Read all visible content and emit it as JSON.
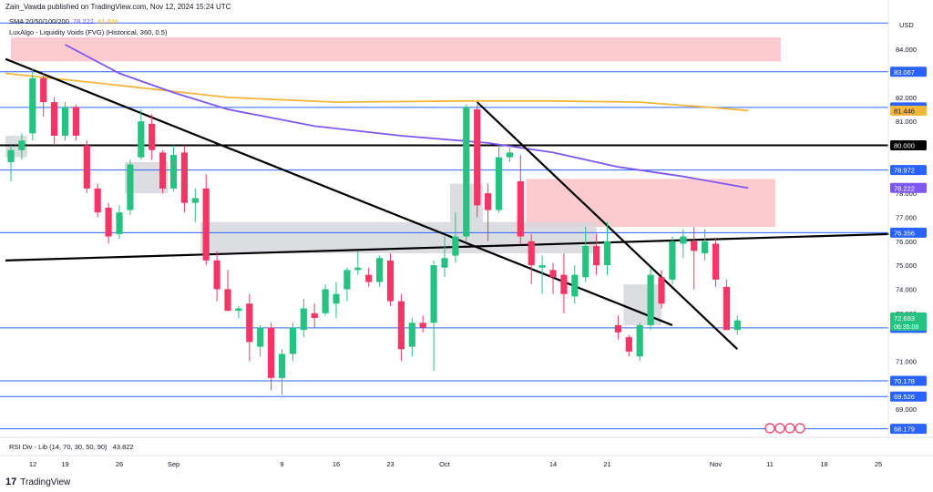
{
  "header": {
    "published": "Zain_Vawda published on TradingView.com, Nov 12, 2024 15:24 UTC"
  },
  "legend": {
    "sma_label": "SMA 20/50/100/200",
    "sma_v1": "78.222",
    "sma_v2": "81.446",
    "luxalgo_label": "LuxAlgo - Liquidity Voids (FVG) (Historical, 360, 0.5)"
  },
  "rsi": {
    "label": "RSI Div - Lib (14, 70, 30, 50, 90)",
    "value": "43.822"
  },
  "brand": {
    "name": "TradingView",
    "logo": "17"
  },
  "colors": {
    "up": "#26c281",
    "down": "#f23666",
    "hline": "#2962ff",
    "sma_purple": "#7e57f0",
    "sma_orange": "#f4b73a",
    "zone_pink": "#fcc2c8",
    "zone_grey": "#d6d7da"
  },
  "chart_data": {
    "type": "candlestick",
    "currency": "USD",
    "ylim": [
      67.9,
      85.3
    ],
    "xlim": [
      0,
      80
    ],
    "price_ticks": [
      "84.000",
      "82.000",
      "81.000",
      "78.000",
      "77.000",
      "76.000",
      "75.000",
      "74.000",
      "73.000",
      "71.000",
      "69.000"
    ],
    "price_tick_values": [
      84,
      82,
      81,
      78,
      77,
      76,
      75,
      74,
      73,
      71,
      69
    ],
    "x_ticks": [
      {
        "label": "12",
        "x": 0
      },
      {
        "label": "19",
        "x": 5
      },
      {
        "label": "26",
        "x": 10
      },
      {
        "label": "Sep",
        "x": 15
      },
      {
        "label": "9",
        "x": 25
      },
      {
        "label": "16",
        "x": 30
      },
      {
        "label": "23",
        "x": 35
      },
      {
        "label": "Oct",
        "x": 40
      },
      {
        "label": "14",
        "x": 50
      },
      {
        "label": "21",
        "x": 55
      },
      {
        "label": "Nov",
        "x": 65
      },
      {
        "label": "11",
        "x": 70
      },
      {
        "label": "18",
        "x": 75
      },
      {
        "label": "25",
        "x": 80
      }
    ],
    "horizontal_levels": [
      {
        "value": 85.1,
        "label": ""
      },
      {
        "value": 83.067,
        "label": "83.067"
      },
      {
        "value": 81.58,
        "label": "81.580"
      },
      {
        "value": 78.972,
        "label": "78.972"
      },
      {
        "value": 76.356,
        "label": "76.356"
      },
      {
        "value": 72.389,
        "label": "72.389"
      },
      {
        "value": 70.178,
        "label": "70.178"
      },
      {
        "value": 69.526,
        "label": "69.526"
      },
      {
        "value": 68.179,
        "label": "68.179"
      }
    ],
    "black_level": {
      "value": 80.0,
      "label": "80.000"
    },
    "sma_labels": [
      {
        "value": 81.446,
        "label": "81.446"
      },
      {
        "value": 78.222,
        "label": "78.222"
      }
    ],
    "last_price": {
      "value": 72.693,
      "label": "72.693",
      "countdown": "06:35:08"
    },
    "candles": [
      {
        "x": 0,
        "o": 79.3,
        "h": 80.0,
        "l": 78.5,
        "c": 79.8
      },
      {
        "x": 1,
        "o": 79.8,
        "h": 80.5,
        "l": 79.4,
        "c": 80.2
      },
      {
        "x": 2,
        "o": 80.5,
        "h": 83.2,
        "l": 80.2,
        "c": 82.8
      },
      {
        "x": 3,
        "o": 82.8,
        "h": 83.0,
        "l": 81.2,
        "c": 81.8
      },
      {
        "x": 4,
        "o": 81.8,
        "h": 82.0,
        "l": 80.0,
        "c": 80.4
      },
      {
        "x": 5,
        "o": 80.4,
        "h": 81.8,
        "l": 80.2,
        "c": 81.6
      },
      {
        "x": 6,
        "o": 81.6,
        "h": 81.7,
        "l": 80.2,
        "c": 80.4
      },
      {
        "x": 7,
        "o": 80.0,
        "h": 80.2,
        "l": 78.0,
        "c": 78.2
      },
      {
        "x": 8,
        "o": 78.2,
        "h": 78.4,
        "l": 77.0,
        "c": 77.2
      },
      {
        "x": 9,
        "o": 77.4,
        "h": 77.6,
        "l": 75.9,
        "c": 76.2
      },
      {
        "x": 10,
        "o": 76.3,
        "h": 77.5,
        "l": 76.1,
        "c": 77.2
      },
      {
        "x": 11,
        "o": 77.3,
        "h": 79.4,
        "l": 77.1,
        "c": 79.2
      },
      {
        "x": 12,
        "o": 79.5,
        "h": 81.5,
        "l": 79.4,
        "c": 81.0
      },
      {
        "x": 13,
        "o": 80.9,
        "h": 81.3,
        "l": 79.4,
        "c": 79.8
      },
      {
        "x": 14,
        "o": 79.7,
        "h": 79.8,
        "l": 78.0,
        "c": 78.2
      },
      {
        "x": 15,
        "o": 78.2,
        "h": 80.0,
        "l": 78.1,
        "c": 79.6
      },
      {
        "x": 16,
        "o": 79.7,
        "h": 80.0,
        "l": 77.2,
        "c": 77.6
      },
      {
        "x": 17,
        "o": 77.6,
        "h": 78.2,
        "l": 76.8,
        "c": 77.8
      },
      {
        "x": 18,
        "o": 78.2,
        "h": 78.8,
        "l": 75.0,
        "c": 75.2
      },
      {
        "x": 19,
        "o": 75.2,
        "h": 75.6,
        "l": 73.5,
        "c": 74.0
      },
      {
        "x": 20,
        "o": 74.0,
        "h": 74.8,
        "l": 73.2,
        "c": 73.1
      },
      {
        "x": 21,
        "o": 73.1,
        "h": 73.3,
        "l": 72.8,
        "c": 73.2
      },
      {
        "x": 22,
        "o": 73.4,
        "h": 73.8,
        "l": 71.0,
        "c": 71.8
      },
      {
        "x": 23,
        "o": 71.6,
        "h": 72.5,
        "l": 71.2,
        "c": 72.4
      },
      {
        "x": 24,
        "o": 72.4,
        "h": 72.6,
        "l": 69.8,
        "c": 70.3
      },
      {
        "x": 25,
        "o": 70.3,
        "h": 71.5,
        "l": 69.6,
        "c": 71.3
      },
      {
        "x": 26,
        "o": 71.3,
        "h": 72.6,
        "l": 71.0,
        "c": 72.4
      },
      {
        "x": 27,
        "o": 72.3,
        "h": 73.6,
        "l": 72.0,
        "c": 73.2
      },
      {
        "x": 28,
        "o": 73.0,
        "h": 73.4,
        "l": 72.4,
        "c": 72.8
      },
      {
        "x": 29,
        "o": 73.0,
        "h": 74.2,
        "l": 72.9,
        "c": 74.0
      },
      {
        "x": 30,
        "o": 73.4,
        "h": 74.3,
        "l": 72.8,
        "c": 73.8
      },
      {
        "x": 31,
        "o": 74.0,
        "h": 74.9,
        "l": 73.5,
        "c": 74.8
      },
      {
        "x": 32,
        "o": 74.8,
        "h": 75.6,
        "l": 74.6,
        "c": 74.9
      },
      {
        "x": 33,
        "o": 74.6,
        "h": 74.9,
        "l": 74.1,
        "c": 74.3
      },
      {
        "x": 34,
        "o": 74.3,
        "h": 75.4,
        "l": 74.1,
        "c": 75.3
      },
      {
        "x": 35,
        "o": 75.2,
        "h": 75.5,
        "l": 73.3,
        "c": 73.5
      },
      {
        "x": 36,
        "o": 73.5,
        "h": 73.8,
        "l": 71.0,
        "c": 71.5
      },
      {
        "x": 37,
        "o": 71.6,
        "h": 72.8,
        "l": 71.2,
        "c": 72.6
      },
      {
        "x": 38,
        "o": 72.6,
        "h": 72.9,
        "l": 72.2,
        "c": 72.4
      },
      {
        "x": 39,
        "o": 72.6,
        "h": 75.2,
        "l": 70.6,
        "c": 75.0
      },
      {
        "x": 40,
        "o": 74.9,
        "h": 76.2,
        "l": 74.5,
        "c": 75.3
      },
      {
        "x": 41,
        "o": 75.4,
        "h": 77.2,
        "l": 75.1,
        "c": 76.2
      },
      {
        "x": 42,
        "o": 76.2,
        "h": 81.7,
        "l": 76.0,
        "c": 81.6
      },
      {
        "x": 43,
        "o": 81.5,
        "h": 81.7,
        "l": 77.0,
        "c": 77.5
      },
      {
        "x": 44,
        "o": 78.0,
        "h": 78.4,
        "l": 76.0,
        "c": 77.3
      },
      {
        "x": 45,
        "o": 77.3,
        "h": 80.0,
        "l": 77.2,
        "c": 79.5
      },
      {
        "x": 46,
        "o": 79.5,
        "h": 79.9,
        "l": 79.3,
        "c": 79.7
      },
      {
        "x": 47,
        "o": 78.5,
        "h": 79.6,
        "l": 75.9,
        "c": 76.2
      },
      {
        "x": 48,
        "o": 76.0,
        "h": 76.3,
        "l": 74.2,
        "c": 75.0
      },
      {
        "x": 49,
        "o": 74.9,
        "h": 75.4,
        "l": 73.8,
        "c": 75.0
      },
      {
        "x": 50,
        "o": 74.8,
        "h": 75.1,
        "l": 73.8,
        "c": 74.5
      },
      {
        "x": 51,
        "o": 74.6,
        "h": 75.5,
        "l": 73.0,
        "c": 73.8
      },
      {
        "x": 52,
        "o": 73.7,
        "h": 75.0,
        "l": 73.4,
        "c": 74.6
      },
      {
        "x": 53,
        "o": 74.5,
        "h": 76.6,
        "l": 74.3,
        "c": 75.8
      },
      {
        "x": 54,
        "o": 75.8,
        "h": 76.3,
        "l": 74.6,
        "c": 75.0
      },
      {
        "x": 55,
        "o": 75.0,
        "h": 76.8,
        "l": 74.6,
        "c": 76.0
      },
      {
        "x": 56,
        "o": 72.5,
        "h": 72.9,
        "l": 71.9,
        "c": 72.2
      },
      {
        "x": 57,
        "o": 72.0,
        "h": 72.1,
        "l": 71.2,
        "c": 71.4
      },
      {
        "x": 58,
        "o": 71.2,
        "h": 72.6,
        "l": 71.0,
        "c": 72.5
      },
      {
        "x": 59,
        "o": 72.5,
        "h": 74.9,
        "l": 72.3,
        "c": 74.6
      },
      {
        "x": 60,
        "o": 74.5,
        "h": 74.8,
        "l": 73.2,
        "c": 73.4
      },
      {
        "x": 61,
        "o": 74.4,
        "h": 76.2,
        "l": 74.2,
        "c": 76.0
      },
      {
        "x": 62,
        "o": 75.9,
        "h": 76.5,
        "l": 75.3,
        "c": 76.2
      },
      {
        "x": 63,
        "o": 76.0,
        "h": 76.6,
        "l": 74.0,
        "c": 75.6
      },
      {
        "x": 64,
        "o": 75.5,
        "h": 76.5,
        "l": 75.2,
        "c": 76.0
      },
      {
        "x": 65,
        "o": 75.9,
        "h": 76.1,
        "l": 74.1,
        "c": 74.4
      },
      {
        "x": 66,
        "o": 74.1,
        "h": 74.4,
        "l": 72.3,
        "c": 72.3
      },
      {
        "x": 67,
        "o": 72.3,
        "h": 72.9,
        "l": 72.1,
        "c": 72.7
      }
    ]
  }
}
